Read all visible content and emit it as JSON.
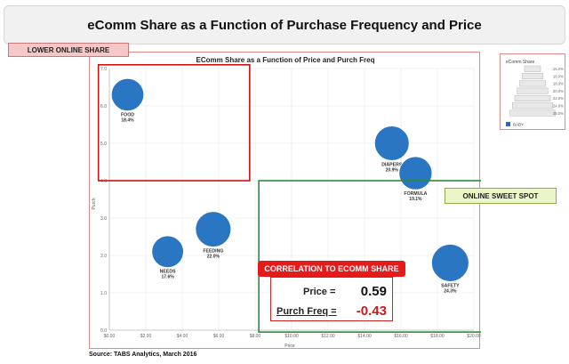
{
  "page_title": "eComm Share as a Function of Purchase Frequency and Price",
  "callouts": {
    "lower_online_share": "LOWER ONLINE SHARE",
    "online_sweet_spot": "ONLINE SWEET SPOT"
  },
  "correlation": {
    "header": "CORRELATION TO ECOMM SHARE",
    "price_label": "Price =",
    "price_value": "0.59",
    "freq_label": "Purch Freq =",
    "freq_value": "-0.43"
  },
  "source": "Source:  TABS Analytics, March 2016",
  "legend": {
    "title": "eComm Share",
    "size_labels": [
      "15.0%",
      "16.0%",
      "18.0%",
      "20.0%",
      "22.0%",
      "24.0%",
      "25.0%"
    ],
    "series_name": "BABY"
  },
  "chart_data": {
    "type": "scatter",
    "title": "EComm Share as a Function of Price and Purch Freq",
    "xlabel": "Price",
    "ylabel": "Purch",
    "xlim": [
      0,
      20
    ],
    "ylim": [
      0,
      7
    ],
    "xticks": [
      "$0.00",
      "$2.00",
      "$4.00",
      "$6.00",
      "$8.00",
      "$10.00",
      "$12.00",
      "$14.00",
      "$16.00",
      "$18.00",
      "$20.00"
    ],
    "yticks": [
      "0.0",
      "1.0",
      "2.0",
      "3.0",
      "4.0",
      "5.0",
      "6.0",
      "7.0"
    ],
    "grid": true,
    "series": [
      {
        "name": "BABY",
        "color": "#1f6fbf",
        "points": [
          {
            "label": "FOOD",
            "share": "18.4%",
            "size": 18.4,
            "x": 1.0,
            "y": 6.3
          },
          {
            "label": "DIAPERS",
            "share": "20.9%",
            "size": 20.9,
            "x": 15.5,
            "y": 5.0
          },
          {
            "label": "FORMULA",
            "share": "19.1%",
            "size": 19.1,
            "x": 16.8,
            "y": 4.2
          },
          {
            "label": "FEEDING",
            "share": "22.0%",
            "size": 22.0,
            "x": 5.7,
            "y": 2.7
          },
          {
            "label": "NEEDS",
            "share": "17.6%",
            "size": 17.6,
            "x": 3.2,
            "y": 2.1
          },
          {
            "label": "SAFETY",
            "share": "24.3%",
            "size": 24.3,
            "x": 18.7,
            "y": 1.8
          }
        ]
      }
    ],
    "colors": {
      "bubble": "#1f6fbf",
      "red_box": "#cc1111",
      "green_box": "#2e8b3a"
    }
  }
}
